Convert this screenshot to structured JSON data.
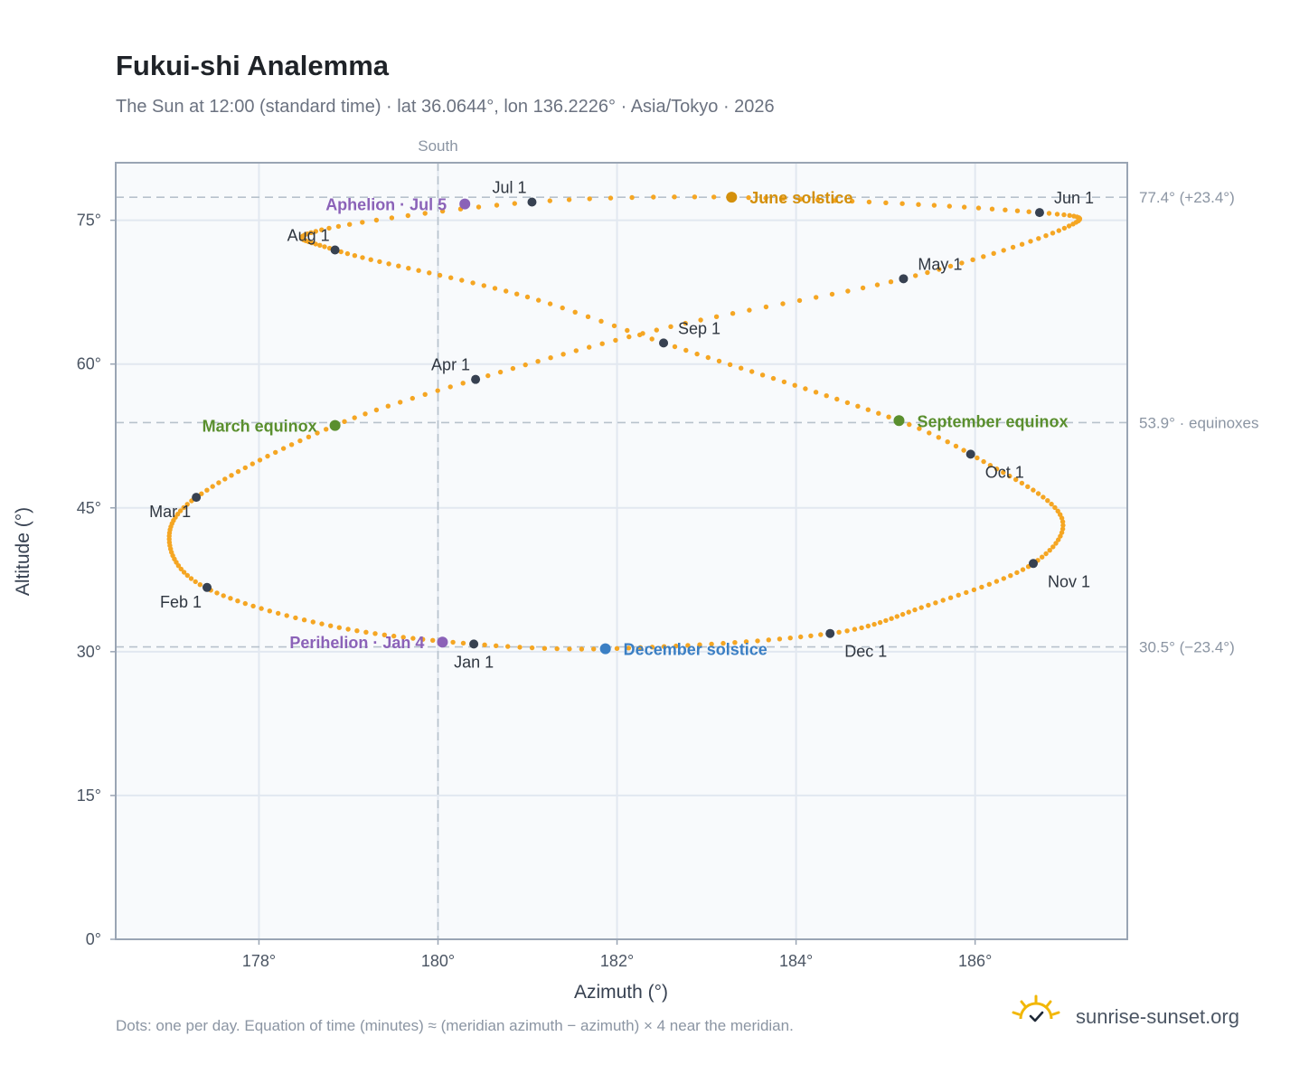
{
  "title": "Fukui-shi Analemma",
  "subtitle": "The Sun at 12:00 (standard time) · lat 36.0644°, lon 136.2226° · Asia/Tokyo · 2026",
  "footnote": "Dots: one per day. Equation of time (minutes) ≈ (meridian azimuth − azimuth) × 4 near the meridian.",
  "brand": "sunrise-sunset.org",
  "colors": {
    "daily_dot": "#f5a623",
    "month_dot": "#374151",
    "solstice_june": "#d4900c",
    "solstice_december": "#3b7fc4",
    "equinox": "#5a8f2e",
    "apsis": "#8b62b8",
    "plot_bg": "#f8fafc",
    "grid": "#e2e8f0",
    "frame": "#9aa5b4",
    "ref_line": "#b7c2cc"
  },
  "chart_data": {
    "type": "scatter",
    "xlabel": "Azimuth (°)",
    "ylabel": "Altitude (°)",
    "xlim": [
      176.4,
      187.7
    ],
    "ylim": [
      0,
      81
    ],
    "x_ticks": [
      178,
      180,
      182,
      184,
      186
    ],
    "x_tick_labels": [
      "178°",
      "180°",
      "182°",
      "184°",
      "186°"
    ],
    "y_ticks": [
      0,
      15,
      30,
      45,
      60,
      75
    ],
    "y_tick_labels": [
      "0°",
      "15°",
      "30°",
      "45°",
      "60°",
      "75°"
    ],
    "grid": true,
    "meridian": {
      "azimuth": 180,
      "label": "South"
    },
    "reference_lines": [
      {
        "altitude": 77.4,
        "label": "77.4° (+23.4°)"
      },
      {
        "altitude": 53.9,
        "label": "53.9° · equinoxes"
      },
      {
        "altitude": 30.5,
        "label": "30.5° (−23.4°)"
      }
    ],
    "analemma_anchors": [
      {
        "day": 0,
        "az": 180.4,
        "alt": 30.8
      },
      {
        "day": 15,
        "az": 178.8,
        "alt": 32.7
      },
      {
        "day": 31,
        "az": 177.4,
        "alt": 36.7
      },
      {
        "day": 45,
        "az": 177.0,
        "alt": 41.4
      },
      {
        "day": 59,
        "az": 177.3,
        "alt": 46.1
      },
      {
        "day": 78,
        "az": 178.85,
        "alt": 53.6
      },
      {
        "day": 90,
        "az": 180.42,
        "alt": 58.4
      },
      {
        "day": 105,
        "az": 182.6,
        "alt": 63.9
      },
      {
        "day": 120,
        "az": 185.2,
        "alt": 68.9
      },
      {
        "day": 138,
        "az": 187.05,
        "alt": 74.4
      },
      {
        "day": 151,
        "az": 186.72,
        "alt": 75.8
      },
      {
        "day": 171,
        "az": 183.28,
        "alt": 77.4
      },
      {
        "day": 181,
        "az": 181.05,
        "alt": 76.9
      },
      {
        "day": 195,
        "az": 178.7,
        "alt": 74.0
      },
      {
        "day": 212,
        "az": 178.85,
        "alt": 71.9
      },
      {
        "day": 232,
        "az": 181.0,
        "alt": 67.0
      },
      {
        "day": 243,
        "az": 182.52,
        "alt": 62.2
      },
      {
        "day": 265,
        "az": 185.15,
        "alt": 54.1
      },
      {
        "day": 273,
        "az": 185.95,
        "alt": 50.6
      },
      {
        "day": 290,
        "az": 186.95,
        "alt": 44.3
      },
      {
        "day": 304,
        "az": 186.65,
        "alt": 39.2
      },
      {
        "day": 320,
        "az": 185.4,
        "alt": 34.6
      },
      {
        "day": 334,
        "az": 184.38,
        "alt": 31.9
      },
      {
        "day": 354,
        "az": 181.87,
        "alt": 30.3
      },
      {
        "day": 365,
        "az": 180.4,
        "alt": 30.8
      }
    ],
    "month_markers": [
      {
        "label": "Jan 1",
        "az": 180.4,
        "alt": 30.8,
        "anchor": "below"
      },
      {
        "label": "Feb 1",
        "az": 177.42,
        "alt": 36.7,
        "anchor": "below-left"
      },
      {
        "label": "Mar 1",
        "az": 177.3,
        "alt": 46.1,
        "anchor": "below-left"
      },
      {
        "label": "Apr 1",
        "az": 180.42,
        "alt": 58.4,
        "anchor": "above-left"
      },
      {
        "label": "May 1",
        "az": 185.2,
        "alt": 68.9,
        "anchor": "above-right"
      },
      {
        "label": "Jun 1",
        "az": 186.72,
        "alt": 75.8,
        "anchor": "above-right"
      },
      {
        "label": "Jul 1",
        "az": 181.05,
        "alt": 76.9,
        "anchor": "above-left"
      },
      {
        "label": "Aug 1",
        "az": 178.85,
        "alt": 71.9,
        "anchor": "above-left"
      },
      {
        "label": "Sep 1",
        "az": 182.52,
        "alt": 62.2,
        "anchor": "above-right"
      },
      {
        "label": "Oct 1",
        "az": 185.95,
        "alt": 50.6,
        "anchor": "below-right"
      },
      {
        "label": "Nov 1",
        "az": 186.65,
        "alt": 39.2,
        "anchor": "below-right"
      },
      {
        "label": "Dec 1",
        "az": 184.38,
        "alt": 31.9,
        "anchor": "below-right"
      }
    ],
    "events": [
      {
        "label": "June solstice",
        "az": 183.28,
        "alt": 77.4,
        "color": "#d4900c",
        "side": "right"
      },
      {
        "label": "December solstice",
        "az": 181.87,
        "alt": 30.3,
        "color": "#3b7fc4",
        "side": "right"
      },
      {
        "label": "March equinox",
        "az": 178.85,
        "alt": 53.6,
        "color": "#5a8f2e",
        "side": "left"
      },
      {
        "label": "September equinox",
        "az": 185.15,
        "alt": 54.1,
        "color": "#5a8f2e",
        "side": "right"
      },
      {
        "label": "Aphelion · Jul 5",
        "az": 180.3,
        "alt": 76.7,
        "color": "#8b62b8",
        "side": "left"
      },
      {
        "label": "Perihelion · Jan 4",
        "az": 180.05,
        "alt": 31.0,
        "color": "#8b62b8",
        "side": "left"
      }
    ]
  }
}
